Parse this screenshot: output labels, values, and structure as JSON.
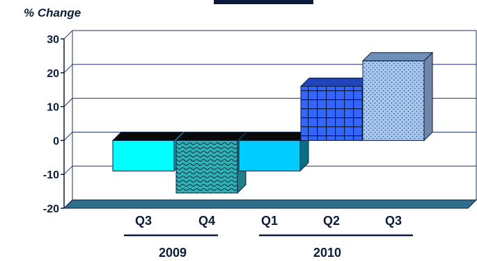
{
  "chart_data": {
    "type": "bar",
    "ylabel": "% Change",
    "ylim": [
      -20,
      30
    ],
    "yticks": [
      30,
      20,
      10,
      0,
      -10,
      -20
    ],
    "grid": true,
    "categories": [
      "Q3",
      "Q4",
      "Q1",
      "Q2",
      "Q3"
    ],
    "values": [
      -9,
      -15.5,
      -9,
      16,
      23.5
    ],
    "groups": [
      {
        "label": "2009",
        "categories": [
          "Q3",
          "Q4"
        ]
      },
      {
        "label": "2010",
        "categories": [
          "Q1",
          "Q2",
          "Q3"
        ]
      }
    ]
  },
  "colors": {
    "navy": "#0b1c3a",
    "grid": "#1e2f6e",
    "floor": "#2f6e8c",
    "bar_q3_2009": "#00ffff",
    "bar_q4_2009": "#2bb3b8",
    "bar_q1_2010": "#00ccff",
    "bar_q2_2010": "#3366ff",
    "bar_q3_2010": "#a8c8f0"
  },
  "bar_styles": [
    "solid",
    "wave",
    "solid",
    "grid",
    "dots"
  ]
}
